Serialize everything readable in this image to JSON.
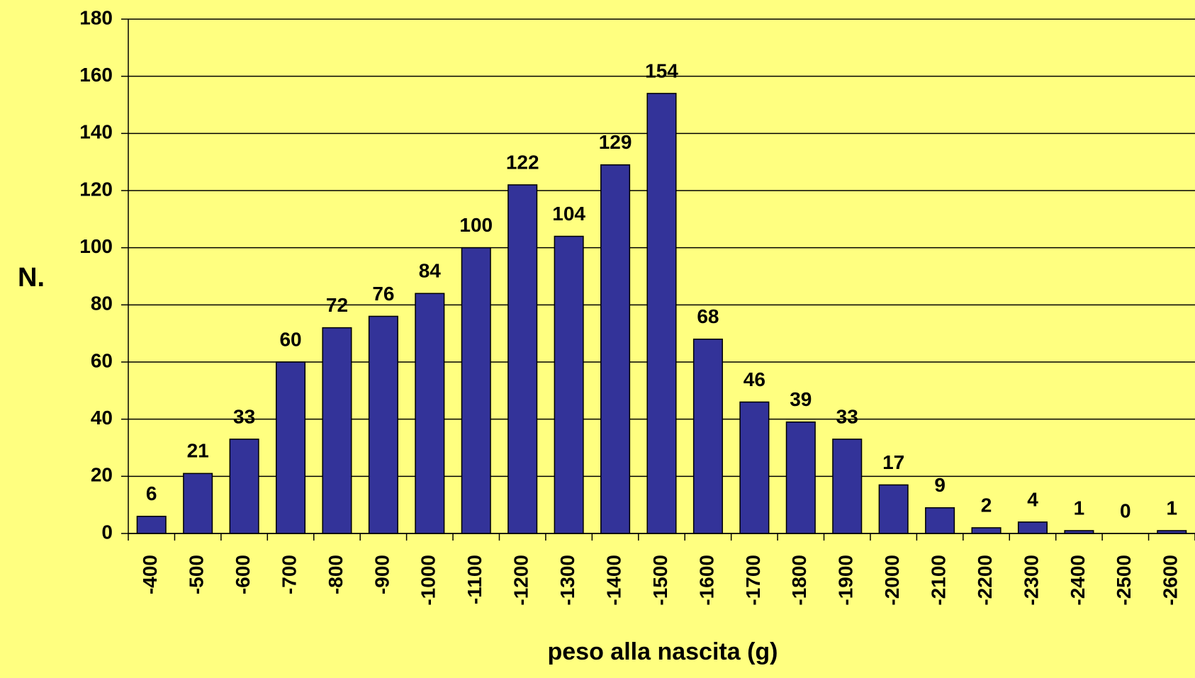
{
  "chart_data": {
    "type": "bar",
    "x_label": "peso alla nascita (g)",
    "y_label": "N.",
    "categories": [
      "-400",
      "-500",
      "-600",
      "-700",
      "-800",
      "-900",
      "-1000",
      "-1100",
      "-1200",
      "-1300",
      "-1400",
      "-1500",
      "-1600",
      "-1700",
      "-1800",
      "-1900",
      "-2000",
      "-2100",
      "-2200",
      "-2300",
      "-2400",
      "-2500",
      "-2600"
    ],
    "values": [
      6,
      21,
      33,
      60,
      72,
      76,
      84,
      100,
      122,
      104,
      129,
      154,
      68,
      46,
      39,
      33,
      17,
      9,
      2,
      4,
      1,
      0,
      1
    ],
    "color": "#333399",
    "ylim": [
      0,
      180
    ],
    "yticks": [
      0,
      20,
      40,
      60,
      80,
      100,
      120,
      140,
      160,
      180
    ],
    "grid": true
  }
}
